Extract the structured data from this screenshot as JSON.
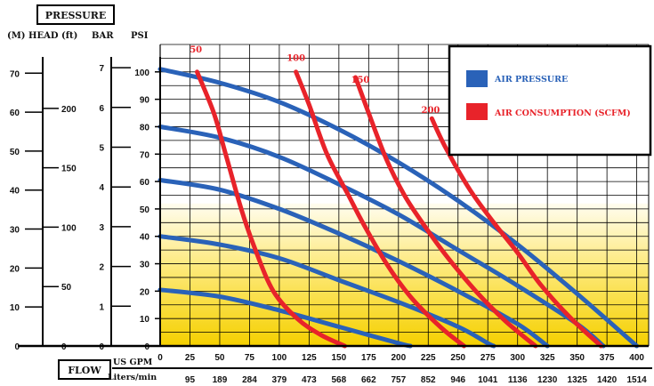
{
  "labels": {
    "pressure": "PRESSURE",
    "head_m_ft": "(M) HEAD (ft)",
    "bar": "BAR",
    "psi": "PSI",
    "flow": "FLOW",
    "us_gpm": "US GPM",
    "liters_min": "Liters/min"
  },
  "colors": {
    "air_pressure": "#2a62b8",
    "air_consumption": "#e8232a",
    "grid": "#000000",
    "fill_top": "#fffbe0",
    "fill_bottom": "#f7d700"
  },
  "chart_data": {
    "type": "line",
    "axes": {
      "x_gpm": {
        "range": [
          0,
          410
        ],
        "ticks": [
          0,
          25,
          50,
          75,
          100,
          125,
          150,
          175,
          200,
          225,
          250,
          275,
          300,
          325,
          350,
          375,
          400
        ]
      },
      "x_lpm_ticks": [
        {
          "gpm": 25,
          "label": "95"
        },
        {
          "gpm": 50,
          "label": "189"
        },
        {
          "gpm": 75,
          "label": "284"
        },
        {
          "gpm": 100,
          "label": "379"
        },
        {
          "gpm": 125,
          "label": "473"
        },
        {
          "gpm": 150,
          "label": "568"
        },
        {
          "gpm": 175,
          "label": "662"
        },
        {
          "gpm": 200,
          "label": "757"
        },
        {
          "gpm": 225,
          "label": "852"
        },
        {
          "gpm": 250,
          "label": "946"
        },
        {
          "gpm": 275,
          "label": "1041"
        },
        {
          "gpm": 300,
          "label": "1136"
        },
        {
          "gpm": 325,
          "label": "1230"
        },
        {
          "gpm": 350,
          "label": "1325"
        },
        {
          "gpm": 375,
          "label": "1420"
        },
        {
          "gpm": 400,
          "label": "1514"
        }
      ],
      "y_psi": {
        "range": [
          0,
          110
        ],
        "ticks": [
          0,
          10,
          20,
          30,
          40,
          50,
          60,
          70,
          80,
          90,
          100
        ]
      },
      "y_bar_ticks": [
        0,
        1,
        2,
        3,
        4,
        5,
        6,
        7
      ],
      "y_head_m_ticks": [
        0,
        10,
        20,
        30,
        40,
        50,
        60,
        70
      ],
      "y_head_ft_ticks": [
        0,
        50,
        100,
        150,
        200
      ]
    },
    "legend": [
      {
        "name": "AIR PRESSURE",
        "color": "#2a62b8"
      },
      {
        "name": "AIR CONSUMPTION (SCFM)",
        "color": "#e8232a"
      }
    ],
    "legend_position": "top-right",
    "grid": true,
    "air_pressure_curves": [
      {
        "psi": 100,
        "points": [
          [
            0,
            101
          ],
          [
            50,
            96
          ],
          [
            100,
            89
          ],
          [
            150,
            79
          ],
          [
            200,
            67
          ],
          [
            250,
            53
          ],
          [
            300,
            37
          ],
          [
            350,
            19
          ],
          [
            400,
            0
          ]
        ]
      },
      {
        "psi": 80,
        "points": [
          [
            0,
            80
          ],
          [
            50,
            76
          ],
          [
            100,
            69
          ],
          [
            150,
            59
          ],
          [
            200,
            48
          ],
          [
            250,
            35
          ],
          [
            300,
            22
          ],
          [
            350,
            8
          ],
          [
            372,
            0
          ]
        ]
      },
      {
        "psi": 60,
        "points": [
          [
            0,
            60.5
          ],
          [
            50,
            57
          ],
          [
            100,
            50
          ],
          [
            150,
            41
          ],
          [
            200,
            31
          ],
          [
            250,
            20
          ],
          [
            300,
            8
          ],
          [
            325,
            0
          ]
        ]
      },
      {
        "psi": 40,
        "points": [
          [
            0,
            40
          ],
          [
            50,
            37
          ],
          [
            100,
            32
          ],
          [
            150,
            24
          ],
          [
            200,
            16
          ],
          [
            250,
            7
          ],
          [
            275,
            1
          ],
          [
            280,
            0
          ]
        ]
      },
      {
        "psi": 20,
        "points": [
          [
            0,
            20.5
          ],
          [
            50,
            18
          ],
          [
            100,
            13
          ],
          [
            150,
            7
          ],
          [
            200,
            1
          ],
          [
            210,
            0
          ]
        ]
      }
    ],
    "air_consumption_curves": [
      {
        "scfm": "50",
        "points": [
          [
            31,
            100
          ],
          [
            45,
            85
          ],
          [
            55,
            70
          ],
          [
            68,
            50
          ],
          [
            80,
            35
          ],
          [
            95,
            20
          ],
          [
            115,
            10
          ],
          [
            135,
            4
          ],
          [
            155,
            0
          ]
        ]
      },
      {
        "scfm": "100",
        "points": [
          [
            114,
            100
          ],
          [
            125,
            88
          ],
          [
            140,
            70
          ],
          [
            158,
            55
          ],
          [
            170,
            45
          ],
          [
            190,
            30
          ],
          [
            210,
            18
          ],
          [
            235,
            7
          ],
          [
            255,
            0
          ]
        ]
      },
      {
        "scfm": "150",
        "points": [
          [
            164,
            98
          ],
          [
            175,
            85
          ],
          [
            190,
            68
          ],
          [
            205,
            55
          ],
          [
            220,
            45
          ],
          [
            240,
            33
          ],
          [
            265,
            20
          ],
          [
            290,
            9
          ],
          [
            315,
            0
          ]
        ]
      },
      {
        "scfm": "200",
        "points": [
          [
            228,
            83
          ],
          [
            240,
            72
          ],
          [
            260,
            57
          ],
          [
            280,
            45
          ],
          [
            300,
            34
          ],
          [
            320,
            22
          ],
          [
            345,
            10
          ],
          [
            370,
            0
          ]
        ]
      }
    ],
    "consumption_labels": [
      {
        "text": "50",
        "gpm": 30,
        "psi": 107
      },
      {
        "text": "100",
        "gpm": 114,
        "psi": 104
      },
      {
        "text": "150",
        "gpm": 168,
        "psi": 96
      },
      {
        "text": "200",
        "gpm": 227,
        "psi": 85
      }
    ]
  }
}
